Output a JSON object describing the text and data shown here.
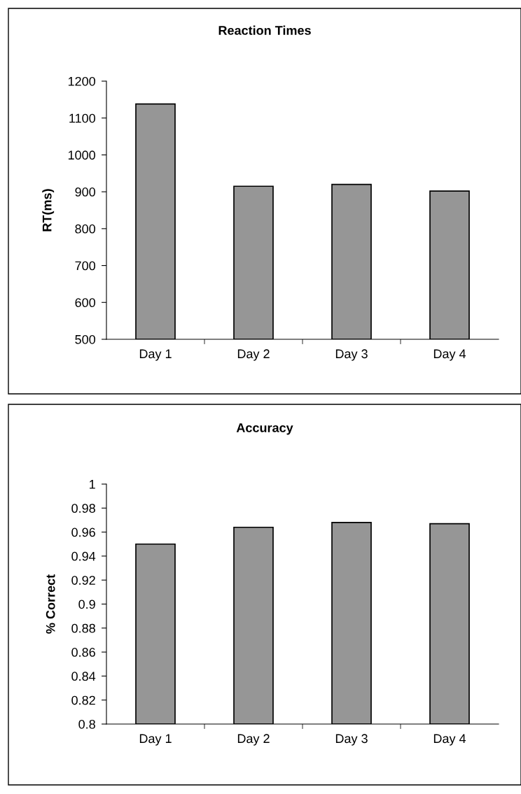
{
  "chart_data": [
    {
      "type": "bar",
      "title": "Reaction Times",
      "ylabel": "RT(ms)",
      "categories": [
        "Day 1",
        "Day 2",
        "Day 3",
        "Day 4"
      ],
      "values": [
        1138,
        915,
        920,
        902
      ],
      "color": "#969696",
      "ylim": [
        500,
        1200
      ],
      "yticks": [
        500,
        600,
        700,
        800,
        900,
        1000,
        1100,
        1200
      ],
      "grid": false
    },
    {
      "type": "bar",
      "title": "Accuracy",
      "ylabel": "% Correct",
      "categories": [
        "Day 1",
        "Day 2",
        "Day 3",
        "Day 4"
      ],
      "values": [
        0.95,
        0.964,
        0.968,
        0.967
      ],
      "color": "#969696",
      "ylim": [
        0.8,
        1
      ],
      "yticks": [
        {
          "value": 0.8,
          "label": "0.8"
        },
        {
          "value": 0.82,
          "label": "0.82"
        },
        {
          "value": 0.84,
          "label": "0.84"
        },
        {
          "value": 0.86,
          "label": "0.86"
        },
        {
          "value": 0.88,
          "label": "0.88"
        },
        {
          "value": 0.9,
          "label": "0.9"
        },
        {
          "value": 0.92,
          "label": "0.92"
        },
        {
          "value": 0.94,
          "label": "0.94"
        },
        {
          "value": 0.96,
          "label": "0.96"
        },
        {
          "value": 0.98,
          "label": "0.98"
        },
        {
          "value": 1,
          "label": "1"
        }
      ],
      "grid": false
    }
  ]
}
